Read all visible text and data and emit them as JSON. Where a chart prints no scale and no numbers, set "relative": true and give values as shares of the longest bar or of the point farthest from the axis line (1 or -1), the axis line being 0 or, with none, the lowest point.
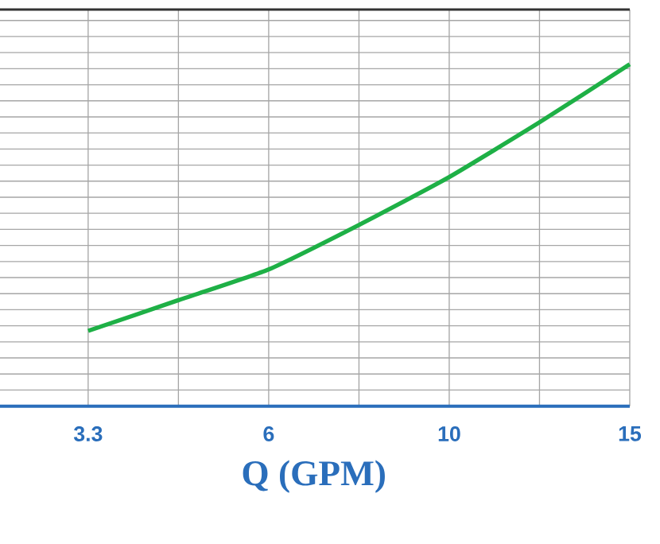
{
  "chart_data": {
    "type": "line",
    "xlabel": "Q (GPM)",
    "relative": true,
    "grid": true,
    "categories": [
      "3.3",
      null,
      "6",
      null,
      "10",
      null,
      "15"
    ],
    "series": [
      {
        "color": "#1eb046",
        "values": [
          0.22,
          0.31,
          0.4,
          0.53,
          0.67,
          0.83,
          1.0
        ]
      }
    ]
  }
}
